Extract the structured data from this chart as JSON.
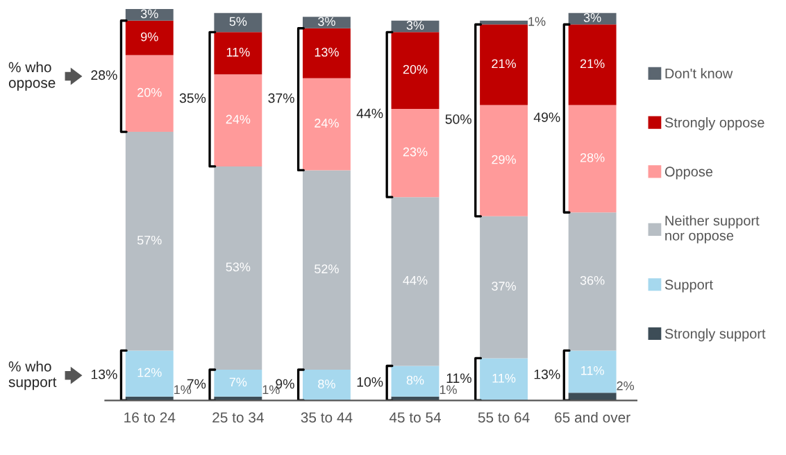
{
  "chart_data": {
    "type": "bar",
    "stacked": true,
    "categories": [
      "16 to 24",
      "25 to 34",
      "35 to 44",
      "45 to 54",
      "55 to 64",
      "65 and over"
    ],
    "series": [
      {
        "name": "Strongly support",
        "color": "#3d4d57",
        "values": [
          1,
          1,
          null,
          1,
          null,
          2
        ],
        "value_labels": [
          "1%",
          "1%",
          null,
          "1%",
          null,
          "2%"
        ]
      },
      {
        "name": "Support",
        "color": "#a6d8ee",
        "values": [
          12,
          7,
          8,
          8,
          11,
          11
        ],
        "value_labels": [
          "12%",
          "7%",
          "8%",
          "8%",
          "11%",
          "11%"
        ]
      },
      {
        "name": "Neither support\nnor oppose",
        "color": "#b7bec4",
        "values": [
          57,
          53,
          52,
          44,
          37,
          36
        ],
        "value_labels": [
          "57%",
          "53%",
          "52%",
          "44%",
          "37%",
          "36%"
        ]
      },
      {
        "name": "Oppose",
        "color": "#ff9a9a",
        "values": [
          20,
          24,
          24,
          23,
          29,
          28
        ],
        "value_labels": [
          "20%",
          "24%",
          "24%",
          "23%",
          "29%",
          "28%"
        ]
      },
      {
        "name": "Strongly oppose",
        "color": "#c00000",
        "values": [
          9,
          11,
          13,
          20,
          21,
          21
        ],
        "value_labels": [
          "9%",
          "11%",
          "13%",
          "20%",
          "21%",
          "21%"
        ]
      },
      {
        "name": "Don't know",
        "color": "#5b6670",
        "values": [
          3,
          5,
          3,
          3,
          1,
          3
        ],
        "value_labels": [
          "3%",
          "5%",
          "3%",
          "3%",
          "1%",
          "3%"
        ]
      }
    ],
    "tick_labels": "x",
    "legend": "right",
    "annotations": [
      "% who\noppose",
      "% who\nsupport",
      "28%",
      "13%",
      "35%",
      "7%",
      "37%",
      "9%",
      "44%",
      "10%",
      "50%",
      "11%",
      "49%",
      "13%"
    ]
  }
}
